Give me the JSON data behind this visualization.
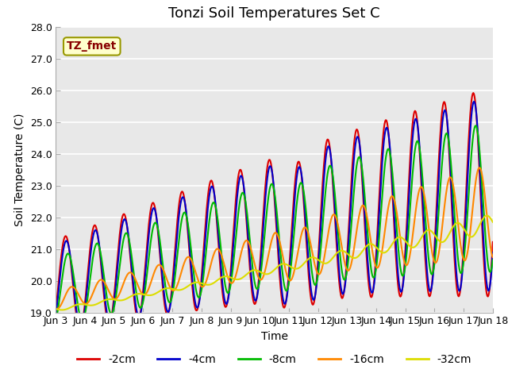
{
  "title": "Tonzi Soil Temperatures Set C",
  "xlabel": "Time",
  "ylabel": "Soil Temperature (C)",
  "ylim": [
    19.0,
    28.0
  ],
  "yticks": [
    19.0,
    20.0,
    21.0,
    22.0,
    23.0,
    24.0,
    25.0,
    26.0,
    27.0,
    28.0
  ],
  "xtick_labels": [
    "Jun 3",
    "Jun 4",
    "Jun 5",
    "Jun 6",
    "Jun 7",
    "Jun 8",
    "Jun 9",
    "Jun 10",
    "Jun 11",
    "Jun 12",
    "Jun 13",
    "Jun 14",
    "Jun 15",
    "Jun 16",
    "Jun 17",
    "Jun 18"
  ],
  "series_colors": [
    "#dd0000",
    "#0000cc",
    "#00bb00",
    "#ff8800",
    "#dddd00"
  ],
  "series_labels": [
    "-2cm",
    "-4cm",
    "-8cm",
    "-16cm",
    "-32cm"
  ],
  "annotation_text": "TZ_fmet",
  "annotation_bbox_facecolor": "#ffffcc",
  "annotation_bbox_edgecolor": "#999900",
  "background_color": "#e8e8e8",
  "title_fontsize": 13,
  "legend_fontsize": 10,
  "axis_fontsize": 10,
  "tick_fontsize": 9
}
